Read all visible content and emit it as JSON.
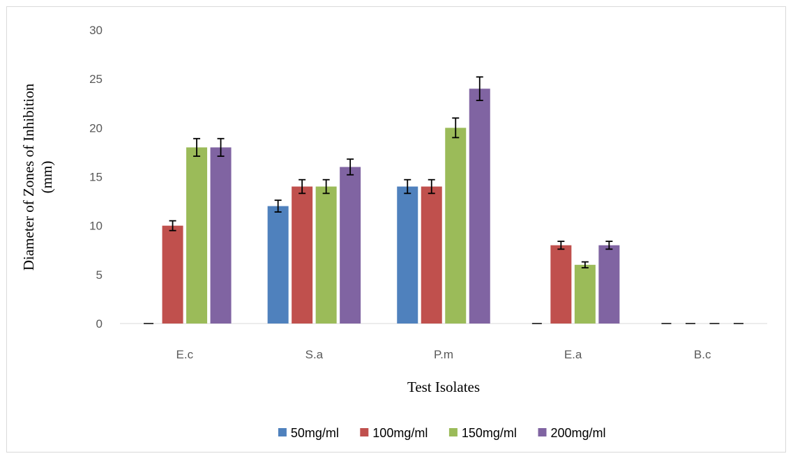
{
  "chart_data": {
    "type": "bar",
    "categories": [
      "E.c",
      "S.a",
      "P.m",
      "E.a",
      "B.c"
    ],
    "series": [
      {
        "name": "50mg/ml",
        "color": "#4f81bd",
        "values": [
          0,
          12,
          14,
          0,
          0
        ],
        "errors": [
          0,
          0.6,
          0.7,
          0,
          0
        ]
      },
      {
        "name": "100mg/ml",
        "color": "#c0504d",
        "values": [
          10,
          14,
          14,
          8,
          0
        ],
        "errors": [
          0.5,
          0.7,
          0.7,
          0.4,
          0
        ]
      },
      {
        "name": "150mg/ml",
        "color": "#9bbb59",
        "values": [
          18,
          14,
          20,
          6,
          0
        ],
        "errors": [
          0.9,
          0.7,
          1.0,
          0.3,
          0
        ]
      },
      {
        "name": "200mg/ml",
        "color": "#8064a2",
        "values": [
          18,
          16,
          24,
          8,
          0
        ],
        "errors": [
          0.9,
          0.8,
          1.2,
          0.4,
          0
        ]
      }
    ],
    "xlabel": "Test Isolates",
    "ylabel_line1": "Diameter of Zones of Inhibition",
    "ylabel_line2": "(mm)",
    "ylim": [
      0,
      30
    ],
    "yticks": [
      "0",
      "5",
      "10",
      "15",
      "20",
      "25",
      "30"
    ],
    "grid": false,
    "legend": "bottom",
    "error_bars": true
  }
}
